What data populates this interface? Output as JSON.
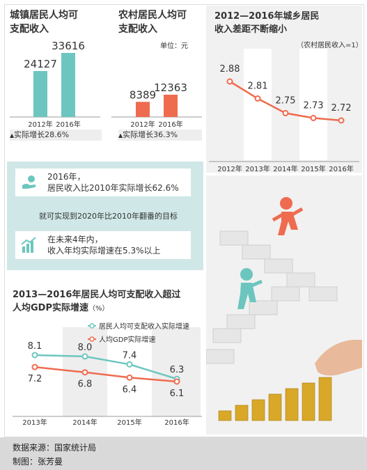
{
  "urban": {
    "title_line1": "城镇居民人均可",
    "title_line2": "支配收入",
    "growth": "实际增长28.6%"
  },
  "rural": {
    "title_line1": "农村居民人均可",
    "title_line2": "支配收入",
    "unit": "单位：元",
    "growth": "实际增长36.3%"
  },
  "gap": {
    "title_line1": "2012—2016年城乡居民",
    "title_line2": "收入差距不断缩小",
    "note": "（农村居民收入=1）"
  },
  "info": {
    "line1": "2016年，",
    "line2": "居民收入比2010年实际增长62.6%",
    "goal": "就可实现到2020年比2010年翻番的目标",
    "line3": "在未来4年内，",
    "line4": "收入年均实际增速在5.3%以上"
  },
  "growth_chart": {
    "title_line1": "2013—2016年居民人均可支配收入超过",
    "title_line2": "人均GDP实际增速",
    "title_unit": "（%）"
  },
  "footer": {
    "source": "数据来源：国家统计局",
    "author": "制图：张芳曼"
  },
  "colors": {
    "teal": "#6cc6bf",
    "red": "#ef6b4f",
    "band": "#cfe8e7",
    "panel": "#f1f1f1"
  },
  "chart_data": [
    {
      "type": "bar",
      "categories": [
        "2012年",
        "2016年"
      ],
      "values": [
        24127,
        33616
      ],
      "color": "#6cc6bf"
    },
    {
      "type": "bar",
      "categories": [
        "2012年",
        "2016年"
      ],
      "values": [
        8389,
        12363
      ],
      "color": "#ef6b4f"
    },
    {
      "type": "line",
      "x": [
        "2012年",
        "2013年",
        "2014年",
        "2015年",
        "2016年"
      ],
      "values": [
        2.88,
        2.81,
        2.75,
        2.73,
        2.72
      ],
      "color": "#ef6b4f"
    },
    {
      "type": "line",
      "x": [
        "2013年",
        "2014年",
        "2015年",
        "2016年"
      ],
      "series": [
        {
          "name": "居民人均可支配收入实际增速",
          "values": [
            8.1,
            8.0,
            7.4,
            6.3
          ],
          "color": "#6cc6bf"
        },
        {
          "name": "人均GDP实际增速",
          "values": [
            7.2,
            6.8,
            6.4,
            6.1
          ],
          "color": "#ef6b4f"
        }
      ]
    }
  ]
}
